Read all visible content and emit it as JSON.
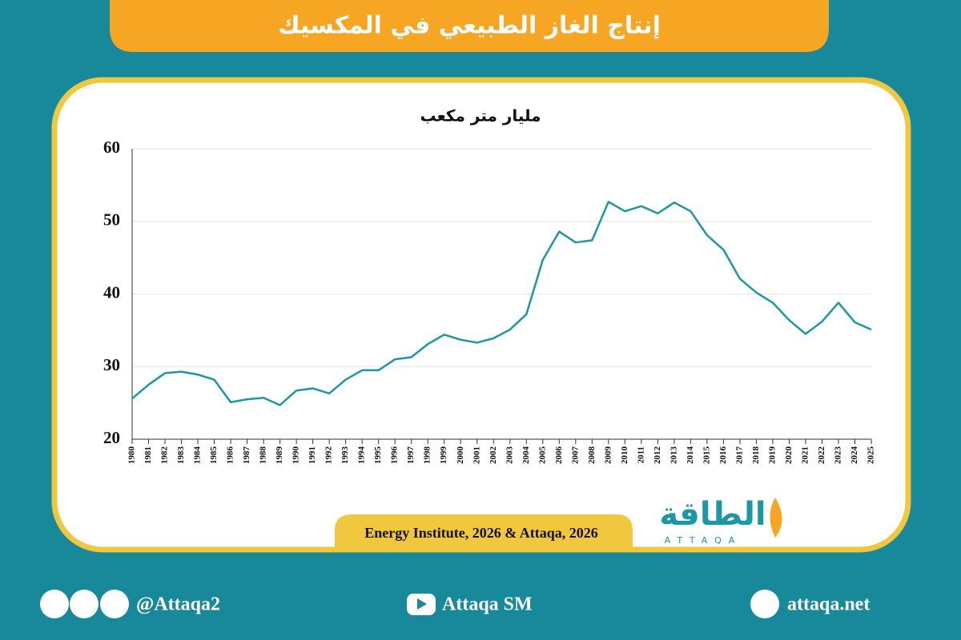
{
  "chart_data": {
    "type": "line",
    "title": "إنتاج الغاز الطبيعي في المكسيك",
    "y_label": "مليار متر مكعب",
    "source": "Energy Institute, 2026 & Attaqa, 2026",
    "categories": [
      "1980",
      "1981",
      "1982",
      "1983",
      "1984",
      "1985",
      "1986",
      "1987",
      "1988",
      "1989",
      "1990",
      "1991",
      "1992",
      "1993",
      "1994",
      "1995",
      "1996",
      "1997",
      "1998",
      "1999",
      "2000",
      "2001",
      "2002",
      "2003",
      "2004",
      "2005",
      "2006",
      "2007",
      "2008",
      "2009",
      "2010",
      "2011",
      "2012",
      "2013",
      "2014",
      "2015",
      "2016",
      "2017",
      "2018",
      "2019",
      "2020",
      "2021",
      "2022",
      "2023",
      "2024",
      "2025"
    ],
    "values": [
      25.6,
      27.5,
      29.1,
      29.3,
      28.9,
      28.2,
      25.1,
      25.5,
      25.7,
      24.7,
      26.7,
      27.0,
      26.3,
      28.2,
      29.5,
      29.5,
      31.0,
      31.3,
      33.1,
      34.4,
      33.7,
      33.3,
      33.9,
      35.1,
      37.2,
      44.7,
      48.6,
      47.1,
      47.4,
      52.7,
      51.4,
      52.1,
      51.1,
      52.6,
      51.4,
      48.1,
      46.1,
      42.1,
      40.2,
      38.8,
      36.4,
      34.5,
      36.2,
      38.8,
      36.1,
      35.1
    ],
    "color": "#1c97a5",
    "ylim": [
      20,
      60
    ],
    "yticks": [
      20,
      30,
      40,
      50,
      60
    ],
    "grid": true
  },
  "logo": {
    "name": "الطاقة",
    "latin": "ATTAQA"
  },
  "footer": {
    "handle": "@Attaqa2",
    "youtube": "Attaqa SM",
    "website": "attaqa.net"
  }
}
